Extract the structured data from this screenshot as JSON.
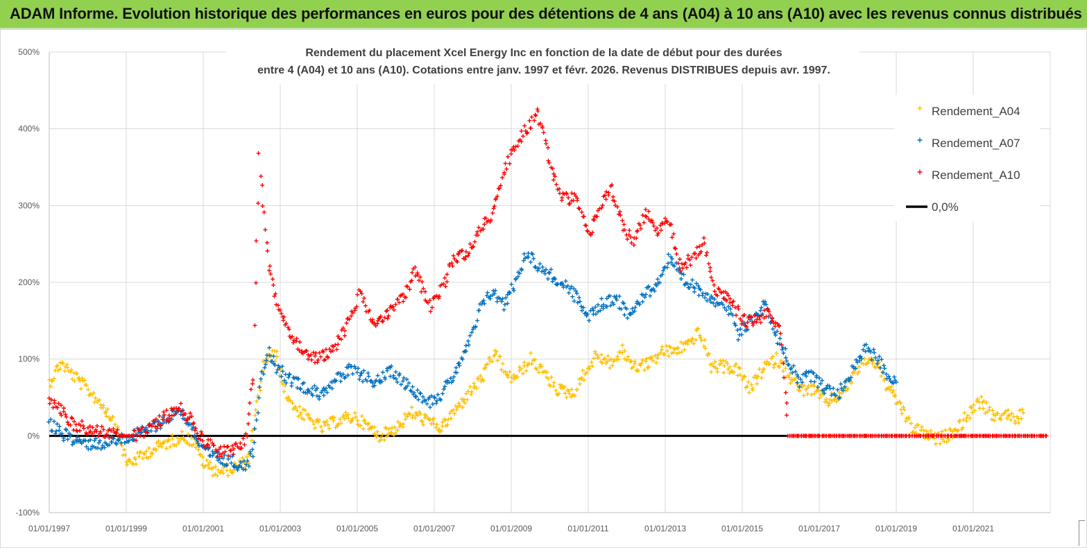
{
  "banner": {
    "title": "ADAM Informe. Evolution historique des performances en euros pour des détentions de 4 ans (A04) à 10 ans (A10) avec les revenus connus distribués"
  },
  "colors": {
    "banner_bg": "#92d050",
    "A04": "#ffc000",
    "A07": "#0070c0",
    "A10": "#ff0000",
    "zero": "#000000",
    "grid": "#d9d9d9"
  },
  "chart_data": {
    "type": "scatter",
    "title_lines": [
      "Rendement du placement Xcel Energy Inc en fonction de la date de début pour des durées",
      "entre 4 (A04) et 10 ans (A10). Cotations entre janv. 1997 et févr. 2026. Revenus DISTRIBUES depuis avr. 1997."
    ],
    "x_start_year": 1997,
    "x_end_year": 2023,
    "x_tick_labels": [
      "01/01/1997",
      "01/01/1999",
      "01/01/2001",
      "01/01/2003",
      "01/01/2005",
      "01/01/2007",
      "01/01/2009",
      "01/01/2011",
      "01/01/2013",
      "01/01/2015",
      "01/01/2017",
      "01/01/2019",
      "01/01/2021"
    ],
    "y_tick_labels": [
      "500%",
      "400%",
      "300%",
      "200%",
      "100%",
      "0%",
      "-100%"
    ],
    "ylim": [
      -100,
      500
    ],
    "grid": true,
    "legend_position": "top-right",
    "series": [
      {
        "name": "Rendement_A04",
        "marker": "+",
        "color": "#ffc000",
        "points": [
          [
            1997.0,
            70
          ],
          [
            1997.3,
            95
          ],
          [
            1997.6,
            80
          ],
          [
            1998.0,
            60
          ],
          [
            1998.3,
            45
          ],
          [
            1998.7,
            20
          ],
          [
            1999.0,
            -35
          ],
          [
            1999.3,
            -30
          ],
          [
            1999.6,
            -20
          ],
          [
            2000.0,
            -10
          ],
          [
            2000.5,
            0
          ],
          [
            2000.8,
            -10
          ],
          [
            2001.0,
            -35
          ],
          [
            2001.3,
            -45
          ],
          [
            2001.6,
            -45
          ],
          [
            2001.9,
            -40
          ],
          [
            2002.2,
            -30
          ],
          [
            2002.4,
            40
          ],
          [
            2002.6,
            100
          ],
          [
            2002.9,
            105
          ],
          [
            2003.1,
            60
          ],
          [
            2003.4,
            35
          ],
          [
            2003.8,
            20
          ],
          [
            2004.1,
            10
          ],
          [
            2004.5,
            20
          ],
          [
            2004.9,
            25
          ],
          [
            2005.2,
            15
          ],
          [
            2005.6,
            0
          ],
          [
            2006.0,
            10
          ],
          [
            2006.4,
            30
          ],
          [
            2006.8,
            20
          ],
          [
            2007.2,
            10
          ],
          [
            2007.5,
            30
          ],
          [
            2007.9,
            55
          ],
          [
            2008.3,
            80
          ],
          [
            2008.6,
            110
          ],
          [
            2008.9,
            75
          ],
          [
            2009.2,
            80
          ],
          [
            2009.5,
            100
          ],
          [
            2009.8,
            85
          ],
          [
            2010.2,
            60
          ],
          [
            2010.6,
            55
          ],
          [
            2010.9,
            80
          ],
          [
            2011.2,
            105
          ],
          [
            2011.6,
            95
          ],
          [
            2011.9,
            110
          ],
          [
            2012.2,
            90
          ],
          [
            2012.6,
            95
          ],
          [
            2012.9,
            110
          ],
          [
            2013.2,
            110
          ],
          [
            2013.6,
            120
          ],
          [
            2013.9,
            135
          ],
          [
            2014.2,
            90
          ],
          [
            2014.6,
            90
          ],
          [
            2014.9,
            85
          ],
          [
            2015.2,
            60
          ],
          [
            2015.6,
            90
          ],
          [
            2015.9,
            100
          ],
          [
            2016.2,
            80
          ],
          [
            2016.5,
            60
          ],
          [
            2016.8,
            60
          ],
          [
            2017.2,
            45
          ],
          [
            2017.6,
            55
          ],
          [
            2017.9,
            80
          ],
          [
            2018.2,
            100
          ],
          [
            2018.5,
            95
          ],
          [
            2018.8,
            60
          ],
          [
            2019.1,
            40
          ],
          [
            2019.4,
            10
          ],
          [
            2019.7,
            5
          ],
          [
            2020.0,
            -5
          ],
          [
            2020.3,
            0
          ],
          [
            2020.6,
            10
          ],
          [
            2020.9,
            30
          ],
          [
            2021.2,
            45
          ],
          [
            2021.5,
            25
          ],
          [
            2021.8,
            30
          ],
          [
            2022.1,
            20
          ],
          [
            2022.3,
            30
          ]
        ]
      },
      {
        "name": "Rendement_A07",
        "marker": "+",
        "color": "#0070c0",
        "points": [
          [
            1997.0,
            15
          ],
          [
            1997.3,
            5
          ],
          [
            1997.6,
            -5
          ],
          [
            1998.0,
            -10
          ],
          [
            1998.4,
            -10
          ],
          [
            1998.8,
            -5
          ],
          [
            1999.2,
            0
          ],
          [
            1999.6,
            10
          ],
          [
            2000.0,
            20
          ],
          [
            2000.4,
            35
          ],
          [
            2000.7,
            10
          ],
          [
            2001.0,
            -20
          ],
          [
            2001.4,
            -30
          ],
          [
            2001.8,
            -35
          ],
          [
            2002.1,
            -40
          ],
          [
            2002.3,
            -20
          ],
          [
            2002.5,
            80
          ],
          [
            2002.7,
            110
          ],
          [
            2002.9,
            90
          ],
          [
            2003.2,
            75
          ],
          [
            2003.6,
            65
          ],
          [
            2004.0,
            55
          ],
          [
            2004.4,
            70
          ],
          [
            2004.8,
            85
          ],
          [
            2005.1,
            80
          ],
          [
            2005.5,
            70
          ],
          [
            2005.9,
            85
          ],
          [
            2006.2,
            70
          ],
          [
            2006.6,
            55
          ],
          [
            2006.9,
            45
          ],
          [
            2007.2,
            55
          ],
          [
            2007.5,
            80
          ],
          [
            2007.9,
            120
          ],
          [
            2008.2,
            165
          ],
          [
            2008.5,
            190
          ],
          [
            2008.8,
            170
          ],
          [
            2009.1,
            200
          ],
          [
            2009.4,
            240
          ],
          [
            2009.7,
            220
          ],
          [
            2010.0,
            210
          ],
          [
            2010.4,
            195
          ],
          [
            2010.7,
            180
          ],
          [
            2011.0,
            155
          ],
          [
            2011.3,
            170
          ],
          [
            2011.7,
            180
          ],
          [
            2012.0,
            160
          ],
          [
            2012.4,
            180
          ],
          [
            2012.8,
            200
          ],
          [
            2013.1,
            230
          ],
          [
            2013.5,
            200
          ],
          [
            2013.9,
            190
          ],
          [
            2014.2,
            180
          ],
          [
            2014.6,
            170
          ],
          [
            2014.9,
            130
          ],
          [
            2015.2,
            150
          ],
          [
            2015.6,
            170
          ],
          [
            2015.9,
            130
          ],
          [
            2016.2,
            100
          ],
          [
            2016.5,
            70
          ],
          [
            2016.8,
            80
          ],
          [
            2017.2,
            60
          ],
          [
            2017.5,
            55
          ],
          [
            2017.8,
            80
          ],
          [
            2018.2,
            115
          ],
          [
            2018.5,
            100
          ],
          [
            2018.8,
            80
          ],
          [
            2019.0,
            70
          ]
        ]
      },
      {
        "name": "Rendement_A10",
        "marker": "+",
        "color": "#ff0000",
        "points": [
          [
            1997.0,
            45
          ],
          [
            1997.3,
            35
          ],
          [
            1997.6,
            15
          ],
          [
            1998.0,
            10
          ],
          [
            1998.4,
            5
          ],
          [
            1998.8,
            0
          ],
          [
            1999.2,
            0
          ],
          [
            1999.6,
            10
          ],
          [
            2000.0,
            25
          ],
          [
            2000.4,
            35
          ],
          [
            2000.7,
            20
          ],
          [
            2001.0,
            -5
          ],
          [
            2001.4,
            -20
          ],
          [
            2001.8,
            -20
          ],
          [
            2002.1,
            -5
          ],
          [
            2002.3,
            80
          ],
          [
            2002.45,
            365
          ],
          [
            2002.55,
            300
          ],
          [
            2002.7,
            220
          ],
          [
            2002.9,
            175
          ],
          [
            2003.2,
            140
          ],
          [
            2003.6,
            110
          ],
          [
            2004.0,
            100
          ],
          [
            2004.4,
            115
          ],
          [
            2004.8,
            150
          ],
          [
            2005.1,
            190
          ],
          [
            2005.4,
            145
          ],
          [
            2005.8,
            160
          ],
          [
            2006.2,
            180
          ],
          [
            2006.5,
            215
          ],
          [
            2006.9,
            170
          ],
          [
            2007.2,
            190
          ],
          [
            2007.5,
            230
          ],
          [
            2007.9,
            240
          ],
          [
            2008.2,
            270
          ],
          [
            2008.5,
            290
          ],
          [
            2008.8,
            340
          ],
          [
            2009.1,
            380
          ],
          [
            2009.4,
            400
          ],
          [
            2009.7,
            420
          ],
          [
            2010.0,
            355
          ],
          [
            2010.3,
            310
          ],
          [
            2010.7,
            310
          ],
          [
            2011.0,
            260
          ],
          [
            2011.3,
            300
          ],
          [
            2011.6,
            320
          ],
          [
            2011.9,
            270
          ],
          [
            2012.2,
            255
          ],
          [
            2012.5,
            290
          ],
          [
            2012.8,
            265
          ],
          [
            2013.1,
            280
          ],
          [
            2013.4,
            220
          ],
          [
            2013.7,
            230
          ],
          [
            2014.0,
            250
          ],
          [
            2014.3,
            190
          ],
          [
            2014.7,
            180
          ],
          [
            2015.0,
            150
          ],
          [
            2015.4,
            150
          ],
          [
            2015.7,
            160
          ],
          [
            2016.0,
            140
          ],
          [
            2016.2,
            0
          ],
          [
            2016.8,
            0
          ],
          [
            2017.4,
            0
          ],
          [
            2018.0,
            0
          ],
          [
            2018.6,
            0
          ],
          [
            2019.2,
            0
          ],
          [
            2019.8,
            0
          ],
          [
            2020.4,
            0
          ],
          [
            2021.0,
            0
          ],
          [
            2021.6,
            0
          ],
          [
            2022.2,
            0
          ],
          [
            2022.9,
            0
          ]
        ]
      },
      {
        "name": "0,0%",
        "marker": "line",
        "color": "#000000",
        "points": [
          [
            1997.0,
            0
          ],
          [
            2016.2,
            0
          ]
        ]
      }
    ]
  }
}
